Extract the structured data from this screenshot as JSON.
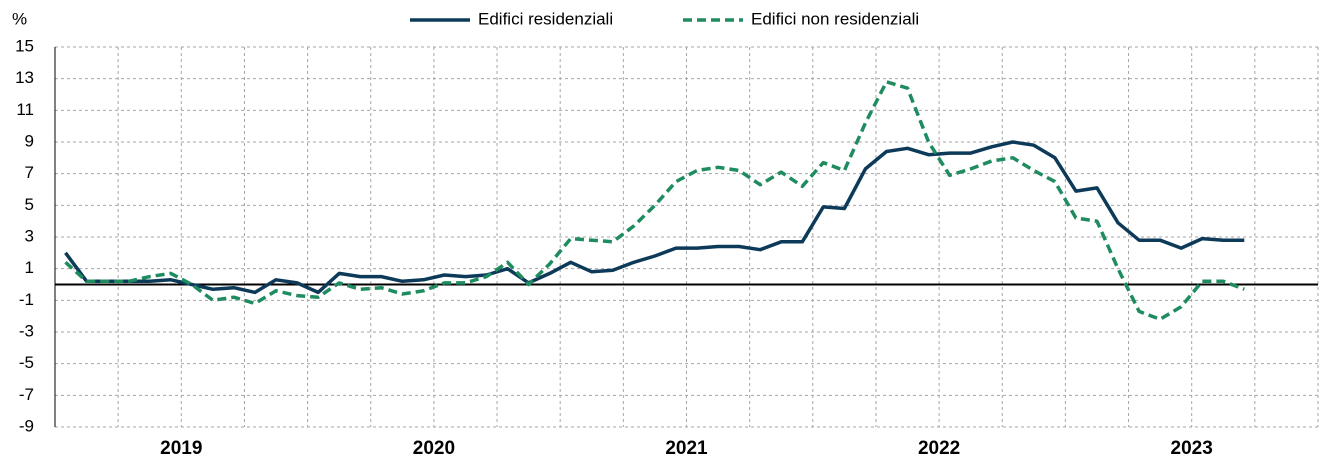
{
  "chart_data": {
    "type": "line",
    "y_unit": "%",
    "years": [
      "2019",
      "2020",
      "2021",
      "2022",
      "2023"
    ],
    "ylim": [
      -9,
      15
    ],
    "yticks": [
      15,
      13,
      11,
      9,
      7,
      5,
      3,
      1,
      -1,
      -3,
      -5,
      -7,
      -9
    ],
    "grid": true,
    "legend": "top",
    "series": [
      {
        "name": "Edifici residenziali",
        "color": "#0e3a5a",
        "dash": false,
        "values": [
          2.0,
          0.2,
          0.2,
          0.2,
          0.2,
          0.3,
          0.0,
          -0.3,
          -0.2,
          -0.5,
          0.3,
          0.1,
          -0.5,
          0.7,
          0.5,
          0.5,
          0.2,
          0.3,
          0.6,
          0.5,
          0.6,
          1.0,
          0.1,
          0.7,
          1.4,
          0.8,
          0.9,
          1.4,
          1.8,
          2.3,
          2.3,
          2.4,
          2.4,
          2.2,
          2.7,
          2.7,
          4.9,
          4.8,
          7.3,
          8.4,
          8.6,
          8.2,
          8.3,
          8.3,
          8.7,
          9.0,
          8.8,
          8.0,
          5.9,
          6.1,
          3.9,
          2.8,
          2.8,
          2.3,
          2.9,
          2.8,
          2.8
        ]
      },
      {
        "name": "Edifici non residenziali",
        "color": "#1e8c5f",
        "dash": true,
        "values": [
          1.4,
          0.2,
          0.2,
          0.2,
          0.5,
          0.7,
          0.0,
          -1.0,
          -0.8,
          -1.2,
          -0.4,
          -0.7,
          -0.8,
          0.1,
          -0.3,
          -0.2,
          -0.6,
          -0.4,
          0.1,
          0.1,
          0.5,
          1.4,
          0.0,
          1.3,
          2.9,
          2.8,
          2.7,
          3.7,
          5.0,
          6.5,
          7.2,
          7.4,
          7.2,
          6.3,
          7.1,
          6.2,
          7.7,
          7.2,
          10.2,
          12.8,
          12.4,
          9.0,
          6.9,
          7.3,
          7.8,
          8.0,
          7.2,
          6.5,
          4.2,
          4.0,
          1.0,
          -1.7,
          -2.2,
          -1.4,
          0.2,
          0.2,
          -0.3
        ]
      }
    ]
  }
}
